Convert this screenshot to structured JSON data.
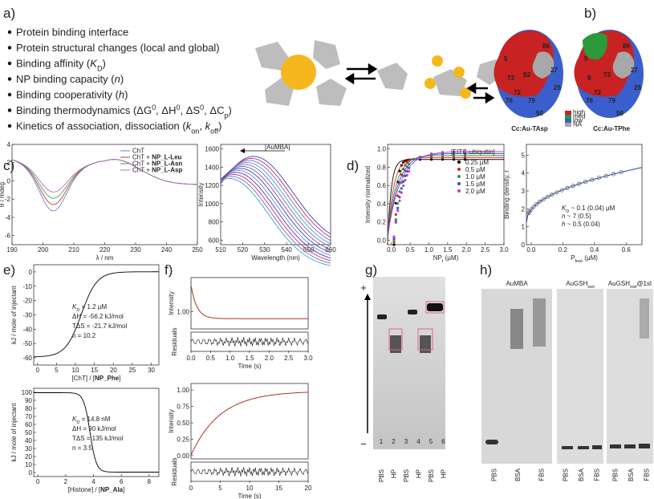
{
  "panel_labels": [
    "a)",
    "b)",
    "c)",
    "d)",
    "e)",
    "f)",
    "g)",
    "h)"
  ],
  "a": {
    "bullets": [
      [
        "Protein binding interface"
      ],
      [
        "Protein structural changes (local and global)"
      ],
      [
        "Binding affinity (",
        {
          "t": "K",
          "s": "i"
        },
        {
          "t": "D",
          "s": "sub"
        },
        ")"
      ],
      [
        "NP binding capacity (",
        {
          "t": "n",
          "s": "i"
        },
        ")"
      ],
      [
        "Binding cooperativity (",
        {
          "t": "h",
          "s": "i"
        },
        ")"
      ],
      [
        "Binding thermodynamics (ΔG",
        {
          "t": "0",
          "s": "sup"
        },
        ", ΔH",
        {
          "t": "0",
          "s": "sup"
        },
        ", ΔS",
        {
          "t": "0",
          "s": "sup"
        },
        ", ΔC",
        {
          "t": "p",
          "s": "sub"
        },
        ")"
      ],
      [
        "Kinetics of association, dissociation (",
        {
          "t": "k",
          "s": "i"
        },
        {
          "t": "on",
          "s": "sub"
        },
        ", ",
        {
          "t": "k",
          "s": "i"
        },
        {
          "t": "off",
          "s": "sub"
        },
        ")"
      ]
    ]
  },
  "b": {
    "captions": [
      "Cc:Au-TAsp",
      "Cc:Au-TPhe"
    ],
    "legend": [
      "high",
      "med",
      "low",
      "NA"
    ],
    "residues_left": [
      "5",
      "73",
      "82",
      "86",
      "72",
      "79",
      "76",
      "25",
      "27",
      "50"
    ],
    "residues_right": [
      "5",
      "8",
      "73",
      "86",
      "72",
      "79",
      "76",
      "25",
      "27",
      "50"
    ]
  },
  "plots": {
    "c_cd": {
      "xlim": [
        190,
        250
      ],
      "xticks": [
        190,
        200,
        210,
        220,
        230,
        240,
        250
      ],
      "ylim": [
        -7,
        4
      ],
      "yticks": [
        4,
        2,
        0,
        -2,
        -4,
        -6
      ],
      "xlabel": "λ / nm",
      "ylabel": "θ / mdeg",
      "legend": [
        [
          "ChT"
        ],
        [
          "ChT + ",
          {
            "t": "NP_L-Leu",
            "s": "b"
          }
        ],
        [
          "ChT + ",
          {
            "t": "NP_L-Asn",
            "s": "b"
          }
        ],
        [
          "ChT + ",
          {
            "t": "NP_L-Asp",
            "s": "b"
          }
        ]
      ],
      "colors": [
        "#7a7acc",
        "#c04040",
        "#50a050",
        "#b070c0"
      ]
    },
    "c_fl": {
      "xlim": [
        510,
        560
      ],
      "xticks": [
        510,
        520,
        530,
        540,
        550,
        560
      ],
      "ylim": [
        550,
        1650
      ],
      "yticks": [
        600,
        800,
        1000,
        1200,
        1400,
        1600
      ],
      "xlabel": "Wavelength (nm)",
      "ylabel": "Intensity",
      "annotation": "[AuMBA]"
    },
    "d_left": {
      "xlim": [
        -0.1,
        3.0
      ],
      "xticks": [
        {
          "value": 0,
          "label": "0.0"
        },
        0.5,
        {
          "value": 1,
          "label": "1.0"
        },
        1.5,
        {
          "value": 2,
          "label": "2.0"
        },
        2.5,
        {
          "value": 3,
          "label": "3.0"
        }
      ],
      "ylim": [
        -0.05,
        1.05
      ],
      "yticks": [
        {
          "value": 0,
          "label": "0.0"
        },
        0.2,
        0.4,
        0.6,
        0.8,
        {
          "value": 1,
          "label": "1.0"
        }
      ],
      "xlabel": [
        {
          "t": "NP",
          "s": ""
        },
        {
          "t": "t",
          "s": "sub"
        },
        " (µM)"
      ],
      "ylabel": "Intensity normalized",
      "legend_title": "[FITC-ubiquitin]",
      "legend": [
        "0.25 µM",
        "0.5 µM",
        "1.0 µM",
        "1.5 µM",
        "2.0 µM"
      ],
      "colors": [
        "#000000",
        "#e02020",
        "#20a040",
        "#3050d0",
        "#c040c0"
      ]
    },
    "d_right": {
      "xlim": [
        -0.03,
        0.7
      ],
      "xticks": [
        {
          "value": 0,
          "label": "0.0"
        },
        0.2,
        0.4,
        0.6
      ],
      "ylim": [
        0,
        5.6
      ],
      "yticks": [
        0,
        1,
        2,
        3,
        4,
        5
      ],
      "xlabel": [
        "P",
        {
          "t": "free",
          "s": "sub"
        },
        " (µM)"
      ],
      "ylabel": "Binding density, r",
      "annotations": [
        [
          {
            "t": "K",
            "s": "i"
          },
          {
            "t": "D",
            "s": "sub"
          },
          " ~ 0.1 (0.04) µM"
        ],
        [
          {
            "t": "n",
            "s": "i"
          },
          " ~ 7 (0.5)"
        ],
        [
          {
            "t": "h",
            "s": "i"
          },
          " ~ 0.5 (0.04)"
        ]
      ]
    },
    "e_top": {
      "xlim": [
        -1,
        32
      ],
      "xticks": [
        0,
        5,
        10,
        15,
        20,
        25,
        30
      ],
      "ylim": [
        -65,
        5
      ],
      "yticks": [
        0,
        -10,
        -20,
        -30,
        -40,
        -50,
        -60
      ],
      "xlabel": [
        "[ChT] / [",
        {
          "t": "NP_Phe",
          "s": "b"
        },
        "]"
      ],
      "ylabel": "kJ / mole of injectant",
      "annotations": [
        [
          {
            "t": "K",
            "s": "i"
          },
          {
            "t": "D",
            "s": "sub"
          },
          " = 1.2 µM"
        ],
        [
          "ΔH = -56.2 kJ/mol"
        ],
        [
          "TΔS = -21.7 kJ/mol"
        ],
        [
          "n = 10.2"
        ]
      ]
    },
    "e_bot": {
      "xlim": [
        -0.3,
        8.7
      ],
      "xticks": [
        0,
        2,
        4,
        6,
        8
      ],
      "ylim": [
        -5,
        105
      ],
      "yticks": [
        100,
        90,
        80,
        70,
        60,
        50,
        40,
        30,
        20,
        10,
        0
      ],
      "xlabel": [
        "[Histone] / [",
        {
          "t": "NP_Ala",
          "s": "b"
        },
        "]"
      ],
      "ylabel": "kJ / mole of injectant",
      "annotations": [
        [
          {
            "t": "K",
            "s": "i"
          },
          {
            "t": "D",
            "s": "sub"
          },
          " = 14.8 nM"
        ],
        [
          "ΔH = 90 kJ/mol"
        ],
        [
          "TΔS = 135 kJ/mol"
        ],
        [
          "n = 3.5"
        ]
      ]
    },
    "f_top": {
      "xlim": [
        0,
        3
      ],
      "xticks": [
        {
          "value": 0,
          "label": "0.0"
        },
        0.5,
        {
          "value": 1,
          "label": "1.0"
        },
        1.5,
        {
          "value": 2,
          "label": "2.0"
        },
        2.5,
        {
          "value": 3,
          "label": "3.0"
        }
      ],
      "ylim": [
        0.95,
        1.1
      ],
      "yticks": [
        {
          "value": 1,
          "label": "1.00"
        }
      ],
      "xlabel": "Time (s)",
      "ylabel": "Intensity",
      "residual_label": "Residuals"
    },
    "f_bot": {
      "xlim": [
        0,
        20
      ],
      "xticks": [
        0,
        5,
        10,
        15,
        20
      ],
      "ylim": [
        -0.05,
        1.1
      ],
      "yticks": [
        {
          "value": 0,
          "label": "0.00"
        },
        0.25,
        {
          "value": 0.5,
          "label": "0.50"
        },
        0.75,
        {
          "value": 1,
          "label": "1.00"
        }
      ],
      "xlabel": "Time (s)",
      "ylabel": "Intensity",
      "residual_label": "Residuals"
    }
  },
  "g": {
    "plus": "+",
    "minus": "−",
    "lanes": [
      "1",
      "2",
      "3",
      "4",
      "5",
      "6"
    ],
    "labels": [
      "PBS",
      "HP",
      "PBS",
      "HP",
      "PBS",
      "HP"
    ]
  },
  "h": {
    "titles": [
      [
        "AuMBA"
      ],
      [
        "AuGSH",
        {
          "t": "zwt",
          "s": "sub"
        }
      ],
      [
        "AuGSH",
        {
          "t": "zwt",
          "s": "sub"
        },
        "@1st"
      ]
    ],
    "lanes": [
      [
        "PBS",
        "BSA",
        "FBS"
      ],
      [
        "PBS",
        "BSA",
        "FBS"
      ],
      [
        "PBS",
        "BSA",
        "FBS"
      ]
    ]
  }
}
